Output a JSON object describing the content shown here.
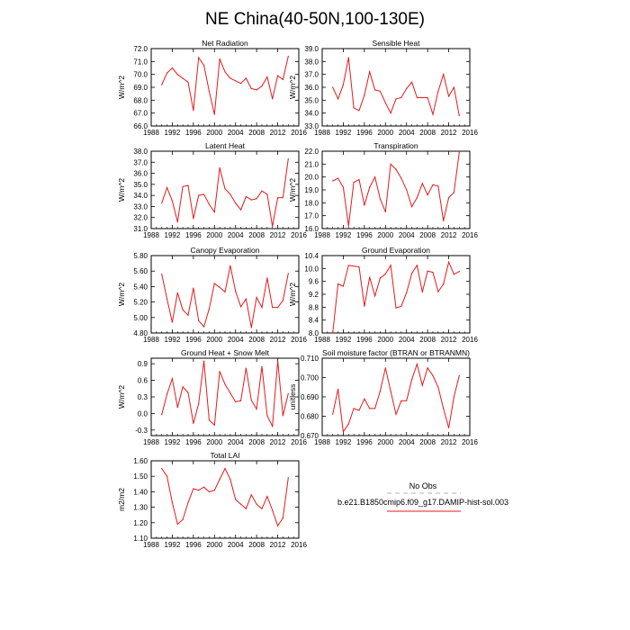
{
  "figure": {
    "title": "NE China(40-50N,100-130E)",
    "legend": {
      "obs_label": "No Obs",
      "model_label": "b.e21.B1850cmip6.f09_g17.DAMIP-hist-sol.003",
      "obs_color": "#aab0d8",
      "model_color": "#e41a1c"
    }
  },
  "chart_data": [
    {
      "type": "line",
      "title": "Net Radiation",
      "ylabel": "W/m^2",
      "xlim": [
        1988,
        2016
      ],
      "ylim": [
        66.0,
        72.0
      ],
      "xticks": [
        "1988",
        "1992",
        "1996",
        "2000",
        "2004",
        "2008",
        "2012",
        "2016"
      ],
      "yticks": [
        "66.0",
        "67.0",
        "68.0",
        "69.0",
        "70.0",
        "71.0",
        "72.0"
      ],
      "x": [
        1990,
        1991,
        1992,
        1993,
        1994,
        1995,
        1996,
        1997,
        1998,
        1999,
        2000,
        2001,
        2002,
        2003,
        2004,
        2005,
        2006,
        2007,
        2008,
        2009,
        2010,
        2011,
        2012,
        2013,
        2014
      ],
      "series": [
        {
          "color": "#e41a1c",
          "values": [
            69.2,
            70.1,
            70.5,
            70.0,
            69.7,
            69.4,
            67.2,
            71.3,
            70.7,
            68.7,
            66.9,
            71.2,
            70.2,
            69.7,
            69.5,
            69.3,
            69.7,
            68.9,
            68.8,
            69.1,
            69.8,
            68.1,
            69.9,
            69.6,
            71.4
          ]
        }
      ]
    },
    {
      "type": "line",
      "title": "Sensible Heat",
      "ylabel": "W/m^2",
      "xlim": [
        1988,
        2016
      ],
      "ylim": [
        33.0,
        39.0
      ],
      "xticks": [
        "1988",
        "1992",
        "1996",
        "2000",
        "2004",
        "2008",
        "2012",
        "2016"
      ],
      "yticks": [
        "33.0",
        "34.0",
        "35.0",
        "36.0",
        "37.0",
        "38.0",
        "39.0"
      ],
      "x": [
        1990,
        1991,
        1992,
        1993,
        1994,
        1995,
        1996,
        1997,
        1998,
        1999,
        2000,
        2001,
        2002,
        2003,
        2004,
        2005,
        2006,
        2007,
        2008,
        2009,
        2010,
        2011,
        2012,
        2013,
        2014
      ],
      "series": [
        {
          "color": "#e41a1c",
          "values": [
            36.0,
            35.1,
            36.2,
            38.3,
            34.4,
            34.2,
            35.4,
            37.2,
            35.8,
            35.7,
            34.8,
            34.0,
            35.1,
            35.2,
            35.9,
            36.4,
            35.2,
            35.2,
            35.2,
            33.9,
            35.7,
            37.0,
            35.3,
            36.0,
            33.8
          ]
        }
      ]
    },
    {
      "type": "line",
      "title": "Latent Heat",
      "ylabel": "W/m^2",
      "xlim": [
        1988,
        2016
      ],
      "ylim": [
        31.0,
        38.0
      ],
      "xticks": [
        "1988",
        "1992",
        "1996",
        "2000",
        "2004",
        "2008",
        "2012",
        "2016"
      ],
      "yticks": [
        "31.0",
        "32.0",
        "33.0",
        "34.0",
        "35.0",
        "36.0",
        "37.0",
        "38.0"
      ],
      "x": [
        1990,
        1991,
        1992,
        1993,
        1994,
        1995,
        1996,
        1997,
        1998,
        1999,
        2000,
        2001,
        2002,
        2003,
        2004,
        2005,
        2006,
        2007,
        2008,
        2009,
        2010,
        2011,
        2012,
        2013,
        2014
      ],
      "series": [
        {
          "color": "#e41a1c",
          "values": [
            33.3,
            34.7,
            33.5,
            31.6,
            34.8,
            34.9,
            31.9,
            34.0,
            34.1,
            33.2,
            32.5,
            36.5,
            34.6,
            34.1,
            33.3,
            32.7,
            33.9,
            33.6,
            33.7,
            34.4,
            34.1,
            31.2,
            33.8,
            33.8,
            37.3
          ]
        }
      ]
    },
    {
      "type": "line",
      "title": "Transpiration",
      "ylabel": "W/m^2",
      "xlim": [
        1988,
        2016
      ],
      "ylim": [
        16.0,
        22.0
      ],
      "xticks": [
        "1988",
        "1992",
        "1996",
        "2000",
        "2004",
        "2008",
        "2012",
        "2016"
      ],
      "yticks": [
        "16.0",
        "17.0",
        "18.0",
        "19.0",
        "20.0",
        "21.0",
        "22.0"
      ],
      "x": [
        1990,
        1991,
        1992,
        1993,
        1994,
        1995,
        1996,
        1997,
        1998,
        1999,
        2000,
        2001,
        2002,
        2003,
        2004,
        2005,
        2006,
        2007,
        2008,
        2009,
        2010,
        2011,
        2012,
        2013,
        2014
      ],
      "series": [
        {
          "color": "#e41a1c",
          "values": [
            19.7,
            19.9,
            19.2,
            16.2,
            19.6,
            19.8,
            17.8,
            19.2,
            20.0,
            18.3,
            17.3,
            21.0,
            20.6,
            19.9,
            19.0,
            17.7,
            18.4,
            19.5,
            18.6,
            19.4,
            19.3,
            16.6,
            18.4,
            18.8,
            21.9
          ]
        }
      ]
    },
    {
      "type": "line",
      "title": "Canopy Evaporation",
      "ylabel": "W/m^2",
      "xlim": [
        1988,
        2016
      ],
      "ylim": [
        4.8,
        5.8
      ],
      "xticks": [
        "1988",
        "1992",
        "1996",
        "2000",
        "2004",
        "2008",
        "2012",
        "2016"
      ],
      "yticks": [
        "4.80",
        "5.00",
        "5.20",
        "5.40",
        "5.60",
        "5.80"
      ],
      "x": [
        1990,
        1991,
        1992,
        1993,
        1994,
        1995,
        1996,
        1997,
        1998,
        1999,
        2000,
        2001,
        2002,
        2003,
        2004,
        2005,
        2006,
        2007,
        2008,
        2009,
        2010,
        2011,
        2012,
        2013,
        2014
      ],
      "series": [
        {
          "color": "#e41a1c",
          "values": [
            5.56,
            5.24,
            4.94,
            5.32,
            5.1,
            5.03,
            5.38,
            4.96,
            4.88,
            5.11,
            5.44,
            5.39,
            5.33,
            5.67,
            5.34,
            5.14,
            5.24,
            4.87,
            5.26,
            5.13,
            5.51,
            5.13,
            5.13,
            5.22,
            5.57
          ]
        }
      ]
    },
    {
      "type": "line",
      "title": "Ground Evaporation",
      "ylabel": "W/m^2",
      "xlim": [
        1988,
        2016
      ],
      "ylim": [
        8.0,
        10.4
      ],
      "xticks": [
        "1988",
        "1992",
        "1996",
        "2000",
        "2004",
        "2008",
        "2012",
        "2016"
      ],
      "yticks": [
        "8.0",
        "8.4",
        "8.8",
        "9.2",
        "9.6",
        "10.0",
        "10.4"
      ],
      "x": [
        1990,
        1991,
        1992,
        1993,
        1994,
        1995,
        1996,
        1997,
        1998,
        1999,
        2000,
        2001,
        2002,
        2003,
        2004,
        2005,
        2006,
        2007,
        2008,
        2009,
        2010,
        2011,
        2012,
        2013,
        2014
      ],
      "series": [
        {
          "color": "#e41a1c",
          "values": [
            8.0,
            9.52,
            9.45,
            10.1,
            10.07,
            10.05,
            8.83,
            9.73,
            9.15,
            9.7,
            9.83,
            10.1,
            8.78,
            8.83,
            9.25,
            9.85,
            10.1,
            9.27,
            9.92,
            9.88,
            9.28,
            9.52,
            10.2,
            9.82,
            9.91
          ]
        }
      ]
    },
    {
      "type": "line",
      "title": "Ground Heat + Snow Melt",
      "ylabel": "W/m^2",
      "xlim": [
        1988,
        2016
      ],
      "ylim": [
        -0.4,
        1.0
      ],
      "xticks": [
        "1988",
        "1992",
        "1996",
        "2000",
        "2004",
        "2008",
        "2012",
        "2016"
      ],
      "yticks": [
        "-0.3",
        "0.0",
        "0.3",
        "0.6",
        "0.9"
      ],
      "x": [
        1990,
        1991,
        1992,
        1993,
        1994,
        1995,
        1996,
        1997,
        1998,
        1999,
        2000,
        2001,
        2002,
        2003,
        2004,
        2005,
        2006,
        2007,
        2008,
        2009,
        2010,
        2011,
        2012,
        2013,
        2014
      ],
      "series": [
        {
          "color": "#e41a1c",
          "values": [
            -0.02,
            0.35,
            0.63,
            0.11,
            0.48,
            0.38,
            -0.18,
            0.18,
            0.95,
            -0.12,
            -0.21,
            0.76,
            0.53,
            0.37,
            0.21,
            0.23,
            0.82,
            0.24,
            0.08,
            0.85,
            -0.04,
            -0.23,
            0.95,
            -0.04,
            0.36
          ]
        }
      ]
    },
    {
      "type": "line",
      "title": "Soil moisture factor (BTRAN or BTRANMN)",
      "ylabel": "unitless",
      "xlim": [
        1988,
        2016
      ],
      "ylim": [
        0.67,
        0.71
      ],
      "xticks": [
        "1988",
        "1992",
        "1996",
        "2000",
        "2004",
        "2008",
        "2012",
        "2016"
      ],
      "yticks": [
        "0.670",
        "0.680",
        "0.690",
        "0.700",
        "0.710"
      ],
      "x": [
        1990,
        1991,
        1992,
        1993,
        1994,
        1995,
        1996,
        1997,
        1998,
        1999,
        2000,
        2001,
        2002,
        2003,
        2004,
        2005,
        2006,
        2007,
        2008,
        2009,
        2010,
        2011,
        2012,
        2013,
        2014
      ],
      "series": [
        {
          "color": "#e41a1c",
          "values": [
            0.681,
            0.694,
            0.672,
            0.676,
            0.684,
            0.683,
            0.689,
            0.684,
            0.684,
            0.693,
            0.705,
            0.693,
            0.681,
            0.688,
            0.688,
            0.699,
            0.707,
            0.696,
            0.705,
            0.701,
            0.695,
            0.684,
            0.674,
            0.69,
            0.701
          ]
        }
      ]
    },
    {
      "type": "line",
      "title": "Total LAI",
      "ylabel": "m2/m2",
      "xlim": [
        1988,
        2016
      ],
      "ylim": [
        1.1,
        1.6
      ],
      "xticks": [
        "1988",
        "1992",
        "1996",
        "2000",
        "2004",
        "2008",
        "2012",
        "2016"
      ],
      "yticks": [
        "1.10",
        "1.20",
        "1.30",
        "1.40",
        "1.50",
        "1.60"
      ],
      "x": [
        1990,
        1991,
        1992,
        1993,
        1994,
        1995,
        1996,
        1997,
        1998,
        1999,
        2000,
        2001,
        2002,
        2003,
        2004,
        2005,
        2006,
        2007,
        2008,
        2009,
        2010,
        2011,
        2012,
        2013,
        2014
      ],
      "series": [
        {
          "color": "#e41a1c",
          "values": [
            1.55,
            1.5,
            1.33,
            1.19,
            1.22,
            1.33,
            1.42,
            1.41,
            1.43,
            1.4,
            1.41,
            1.48,
            1.55,
            1.48,
            1.35,
            1.32,
            1.29,
            1.38,
            1.32,
            1.29,
            1.37,
            1.28,
            1.18,
            1.23,
            1.49
          ]
        }
      ]
    }
  ]
}
